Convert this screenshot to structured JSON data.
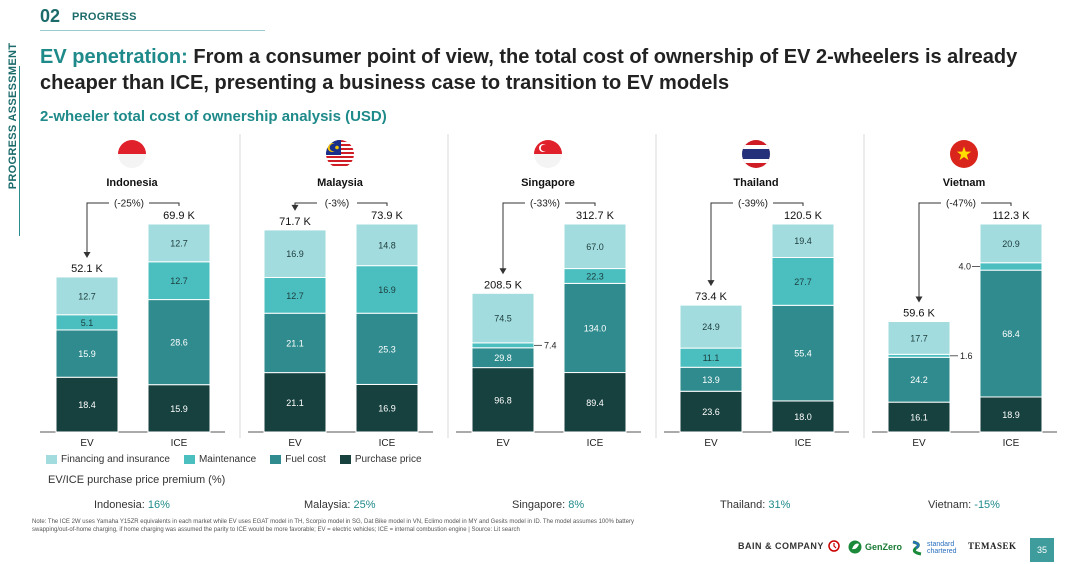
{
  "section": {
    "number": "02",
    "label": "PROGRESS"
  },
  "side_label": "PROGRESS ASSESSMENT",
  "title": {
    "highlight": "EV penetration:",
    "rest": " From a consumer point of view, the total cost of ownership of EV 2-wheelers is already cheaper than ICE, presenting a business case to transition to EV models"
  },
  "subtitle": "2-wheeler total cost of ownership analysis (USD)",
  "colors": {
    "financing": "#a3dcde",
    "maintenance": "#4bbfc0",
    "fuel": "#2f8b8e",
    "purchase": "#17413f",
    "accent": "#1f8a8a"
  },
  "chart_data": {
    "type": "bar",
    "stacked": true,
    "unit": "USD",
    "segments": [
      "Purchase price",
      "Fuel cost",
      "Maintenance",
      "Financing and insurance"
    ],
    "legend": [
      "Financing and insurance",
      "Maintenance",
      "Fuel cost",
      "Purchase price"
    ],
    "categories": [
      "EV",
      "ICE"
    ],
    "panels": [
      {
        "country": "Indonesia",
        "flag": "indonesia-flag-icon",
        "change": "(-25%)",
        "EV": {
          "total": "52.1 K",
          "values": [
            18.4,
            15.9,
            5.1,
            12.7
          ],
          "labels": [
            "18.4",
            "15.9",
            "5.1",
            "12.7"
          ]
        },
        "ICE": {
          "total": "69.9 K",
          "values": [
            15.9,
            28.6,
            12.7,
            12.7
          ],
          "labels": [
            "15.9",
            "28.6",
            "12.7",
            "12.7"
          ]
        }
      },
      {
        "country": "Malaysia",
        "flag": "malaysia-flag-icon",
        "change": "(-3%)",
        "EV": {
          "total": "71.7 K",
          "values": [
            21.1,
            21.1,
            12.7,
            16.9
          ],
          "labels": [
            "21.1",
            "21.1",
            "12.7",
            "16.9"
          ]
        },
        "ICE": {
          "total": "73.9 K",
          "values": [
            16.9,
            25.3,
            16.9,
            14.8
          ],
          "labels": [
            "16.9",
            "25.3",
            "16.9",
            "14.8"
          ]
        }
      },
      {
        "country": "Singapore",
        "flag": "singapore-flag-icon",
        "change": "(-33%)",
        "EV": {
          "total": "208.5 K",
          "values": [
            96.8,
            29.8,
            7.4,
            74.5
          ],
          "labels": [
            "96.8",
            "29.8",
            "7.4",
            "74.5"
          ]
        },
        "ICE": {
          "total": "312.7 K",
          "values": [
            89.4,
            134.0,
            22.3,
            67.0
          ],
          "labels": [
            "89.4",
            "134.0",
            "22.3",
            "67.0"
          ]
        }
      },
      {
        "country": "Thailand",
        "flag": "thailand-flag-icon",
        "change": "(-39%)",
        "EV": {
          "total": "73.4 K",
          "values": [
            23.6,
            13.9,
            11.1,
            24.9
          ],
          "labels": [
            "23.6",
            "13.9",
            "11.1",
            "24.9"
          ]
        },
        "ICE": {
          "total": "120.5 K",
          "values": [
            18.0,
            55.4,
            27.7,
            19.4
          ],
          "labels": [
            "18.0",
            "55.4",
            "27.7",
            "19.4"
          ]
        }
      },
      {
        "country": "Vietnam",
        "flag": "vietnam-flag-icon",
        "change": "(-47%)",
        "EV": {
          "total": "59.6 K",
          "values": [
            16.1,
            24.2,
            1.6,
            17.7
          ],
          "labels": [
            "16.1",
            "24.2",
            "1.6",
            "17.7"
          ]
        },
        "ICE": {
          "total": "112.3 K",
          "values": [
            18.9,
            68.4,
            4.0,
            20.9
          ],
          "labels": [
            "18.9",
            "68.4",
            "4.0",
            "20.9"
          ]
        }
      }
    ]
  },
  "premium": {
    "label": "EV/ICE purchase price premium (%)",
    "items": [
      {
        "country": "Indonesia:",
        "value": "16%"
      },
      {
        "country": "Malaysia:",
        "value": "25%"
      },
      {
        "country": "Singapore:",
        "value": "8%"
      },
      {
        "country": "Thailand:",
        "value": "31%"
      },
      {
        "country": "Vietnam:",
        "value": "-15%"
      }
    ]
  },
  "note": "Note: The ICE 2W uses Yamaha Y15ZR equivalents in each market while EV uses EGAT model in TH, Scorpio model in SG, Dat Bike model in VN, Eclimo model in MY and Gesits model in ID. The model assumes 100% battery swapping/out-of-home charging, if home charging was assumed the parity to ICE would be more favorable; EV = electric vehicles; ICE = internal combustion engine | Source: Lit search",
  "footer": {
    "bain": "BAIN & COMPANY",
    "genzero": "GenZero",
    "sc_line1": "standard",
    "sc_line2": "chartered",
    "temasek": "TEMASEK",
    "page": "35"
  }
}
